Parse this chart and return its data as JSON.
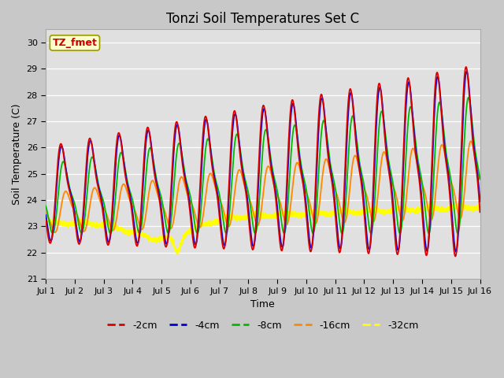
{
  "title": "Tonzi Soil Temperatures Set C",
  "xlabel": "Time",
  "ylabel": "Soil Temperature (C)",
  "ylim": [
    21.0,
    30.5
  ],
  "yticks": [
    21.0,
    22.0,
    23.0,
    24.0,
    25.0,
    26.0,
    27.0,
    28.0,
    29.0,
    30.0
  ],
  "xlim": [
    0,
    360
  ],
  "xtick_positions": [
    0,
    24,
    48,
    72,
    96,
    120,
    144,
    168,
    192,
    216,
    240,
    264,
    288,
    312,
    336,
    360
  ],
  "xtick_labels": [
    "Jul 1",
    "Jul 2",
    "Jul 3",
    "Jul 4",
    "Jul 5",
    "Jul 6",
    "Jul 7",
    "Jul 8",
    "Jul 9",
    "Jul 10",
    "Jul 11",
    "Jul 12",
    "Jul 13",
    "Jul 14",
    "Jul 15",
    "Jul 16"
  ],
  "series": {
    "-2cm": {
      "color": "#dd0000",
      "lw": 1.3
    },
    "-4cm": {
      "color": "#0000dd",
      "lw": 1.3
    },
    "-8cm": {
      "color": "#00bb00",
      "lw": 1.3
    },
    "-16cm": {
      "color": "#ff8800",
      "lw": 1.3
    },
    "-32cm": {
      "color": "#ffff00",
      "lw": 1.8
    }
  },
  "annotation_text": "TZ_fmet",
  "annotation_color": "#cc0000",
  "annotation_bg": "#ffffcc",
  "annotation_border": "#999900",
  "fig_bg": "#c8c8c8",
  "plot_bg": "#e0e0e0",
  "grid_color": "#ffffff",
  "title_fontsize": 12,
  "tick_fontsize": 8,
  "label_fontsize": 9,
  "legend_fontsize": 9
}
